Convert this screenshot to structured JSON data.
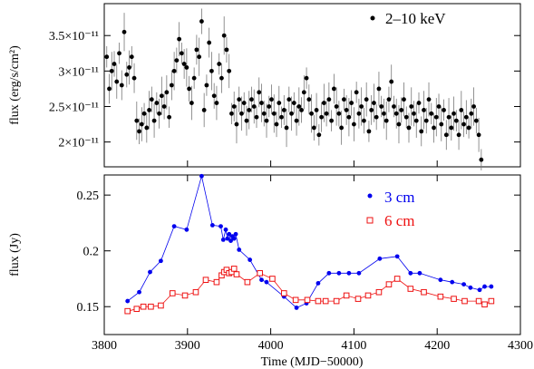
{
  "chart_data": [
    {
      "type": "scatter",
      "ylabel": "flux (erg/s/cm²)",
      "xlim": [
        3800,
        4300
      ],
      "ylim": [
        1.65e-11,
        3.95e-11
      ],
      "yticks": [
        {
          "value": 2e-11,
          "label": "2×10⁻¹¹"
        },
        {
          "value": 2.5e-11,
          "label": "2.5×10⁻¹¹"
        },
        {
          "value": 3e-11,
          "label": "3×10⁻¹¹"
        },
        {
          "value": 3.5e-11,
          "label": "3.5×10⁻¹¹"
        }
      ],
      "error_bars": true,
      "legend": {
        "position": "top-right"
      },
      "series": [
        {
          "name": "2–10 keV",
          "color": "#000000",
          "marker": "dot",
          "x": [
            3803,
            3806,
            3809,
            3812,
            3815,
            3818,
            3821,
            3824,
            3827,
            3830,
            3833,
            3836,
            3839,
            3842,
            3845,
            3848,
            3851,
            3854,
            3857,
            3860,
            3863,
            3866,
            3869,
            3872,
            3875,
            3878,
            3881,
            3884,
            3887,
            3890,
            3893,
            3896,
            3899,
            3902,
            3905,
            3908,
            3911,
            3914,
            3917,
            3920,
            3923,
            3926,
            3929,
            3932,
            3935,
            3938,
            3941,
            3944,
            3947,
            3950,
            3953,
            3956,
            3959,
            3962,
            3965,
            3968,
            3971,
            3974,
            3977,
            3980,
            3983,
            3986,
            3989,
            3992,
            3995,
            3998,
            4001,
            4004,
            4007,
            4010,
            4013,
            4016,
            4019,
            4022,
            4025,
            4028,
            4031,
            4034,
            4037,
            4040,
            4043,
            4046,
            4049,
            4052,
            4055,
            4058,
            4061,
            4064,
            4067,
            4070,
            4073,
            4076,
            4079,
            4082,
            4085,
            4088,
            4091,
            4094,
            4097,
            4100,
            4103,
            4106,
            4109,
            4112,
            4115,
            4118,
            4121,
            4124,
            4127,
            4130,
            4133,
            4136,
            4139,
            4142,
            4145,
            4148,
            4151,
            4154,
            4157,
            4160,
            4163,
            4166,
            4169,
            4172,
            4175,
            4178,
            4181,
            4184,
            4187,
            4190,
            4193,
            4196,
            4199,
            4202,
            4205,
            4208,
            4211,
            4214,
            4217,
            4220,
            4223,
            4226,
            4229,
            4232,
            4235,
            4238,
            4241,
            4244,
            4247,
            4250,
            4253
          ],
          "y": [
            3.2e-11,
            2.75e-11,
            3e-11,
            3.1e-11,
            2.85e-11,
            3.25e-11,
            2.8e-11,
            3.55e-11,
            2.95e-11,
            3.05e-11,
            3.2e-11,
            2.9e-11,
            2.3e-11,
            2.15e-11,
            2.25e-11,
            2.4e-11,
            2.2e-11,
            2.45e-11,
            2.6e-11,
            2.3e-11,
            2.55e-11,
            2.4e-11,
            2.65e-11,
            2.5e-11,
            2.7e-11,
            2.35e-11,
            2.8e-11,
            3e-11,
            3.15e-11,
            3.45e-11,
            3.25e-11,
            3.1e-11,
            3.05e-11,
            2.75e-11,
            2.55e-11,
            2.9e-11,
            3.3e-11,
            3.2e-11,
            3.7e-11,
            2.45e-11,
            2.8e-11,
            3.4e-11,
            3e-11,
            2.65e-11,
            2.55e-11,
            3.1e-11,
            2.9e-11,
            3.5e-11,
            3.3e-11,
            3e-11,
            2.4e-11,
            2.5e-11,
            2.25e-11,
            2.6e-11,
            2.4e-11,
            2.55e-11,
            2.3e-11,
            2.45e-11,
            2.6e-11,
            2.5e-11,
            2.35e-11,
            2.7e-11,
            2.55e-11,
            2.4e-11,
            2.3e-11,
            2.5e-11,
            2.6e-11,
            2.4e-11,
            2.25e-11,
            2.55e-11,
            2.35e-11,
            2.45e-11,
            2.2e-11,
            2.6e-11,
            2.4e-11,
            2.55e-11,
            2.3e-11,
            2.5e-11,
            2.45e-11,
            2.7e-11,
            2.9e-11,
            2.6e-11,
            2.4e-11,
            2.2e-11,
            2.45e-11,
            2.1e-11,
            2.35e-11,
            2.55e-11,
            2.4e-11,
            2.6e-11,
            2.3e-11,
            2.75e-11,
            2.5e-11,
            2.4e-11,
            2.2e-11,
            2.6e-11,
            2.45e-11,
            2.35e-11,
            2.55e-11,
            2.25e-11,
            2.7e-11,
            2.4e-11,
            2.5e-11,
            2.3e-11,
            2.6e-11,
            2.15e-11,
            2.45e-11,
            2.55e-11,
            2.35e-11,
            2.75e-11,
            2.5e-11,
            2.4e-11,
            2.3e-11,
            2.6e-11,
            2.85e-11,
            2.5e-11,
            2.4e-11,
            2.25e-11,
            2.45e-11,
            2.6e-11,
            2.35e-11,
            2.2e-11,
            2.5e-11,
            2.4e-11,
            2.3e-11,
            2.55e-11,
            2.15e-11,
            2.45e-11,
            2.3e-11,
            2.6e-11,
            2.4e-11,
            2.2e-11,
            2.35e-11,
            2.5e-11,
            2.25e-11,
            2.45e-11,
            2.1e-11,
            2.35e-11,
            2.2e-11,
            2.4e-11,
            2.3e-11,
            2.1e-11,
            2.45e-11,
            2.25e-11,
            2.35e-11,
            2.2e-11,
            2.4e-11,
            2.5e-11,
            2.3e-11,
            2.1e-11,
            1.75e-11
          ]
        }
      ]
    },
    {
      "type": "line",
      "xlabel": "Time (MJD−50000)",
      "ylabel": "flux (Jy)",
      "xlim": [
        3800,
        4300
      ],
      "ylim": [
        0.125,
        0.268
      ],
      "xticks": [
        3800,
        3900,
        4000,
        4100,
        4200,
        4300
      ],
      "yticks": [
        {
          "value": 0.15,
          "label": "0.15"
        },
        {
          "value": 0.2,
          "label": "0.2"
        },
        {
          "value": 0.25,
          "label": "0.25"
        }
      ],
      "legend": {
        "position": "top-right"
      },
      "series": [
        {
          "name": "3 cm",
          "color": "#0000ee",
          "marker": "dot",
          "x": [
            3828,
            3842,
            3855,
            3868,
            3884,
            3899,
            3917,
            3930,
            3940,
            3943,
            3946,
            3948,
            3950,
            3952,
            3954,
            3956,
            3958,
            3962,
            3975,
            3989,
            3995,
            4016,
            4031,
            4043,
            4057,
            4070,
            4082,
            4094,
            4106,
            4131,
            4152,
            4168,
            4179,
            4204,
            4218,
            4232,
            4240,
            4251,
            4257,
            4265
          ],
          "x_note": "",
          "y": [
            0.155,
            0.163,
            0.181,
            0.191,
            0.222,
            0.219,
            0.267,
            0.223,
            0.222,
            0.21,
            0.219,
            0.211,
            0.215,
            0.209,
            0.213,
            0.211,
            0.215,
            0.201,
            0.192,
            0.174,
            0.172,
            0.159,
            0.149,
            0.153,
            0.171,
            0.18,
            0.18,
            0.18,
            0.18,
            0.193,
            0.195,
            0.18,
            0.18,
            0.174,
            0.172,
            0.17,
            0.167,
            0.165,
            0.168,
            0.168
          ]
        },
        {
          "name": "6 cm",
          "color": "#ee1111",
          "marker": "open-square",
          "x": [
            3828,
            3839,
            3847,
            3856,
            3868,
            3882,
            3897,
            3910,
            3922,
            3935,
            3941,
            3944,
            3947,
            3950,
            3953,
            3956,
            3959,
            3972,
            3987,
            4002,
            4016,
            4030,
            4044,
            4057,
            4066,
            4079,
            4091,
            4105,
            4117,
            4130,
            4142,
            4152,
            4168,
            4184,
            4204,
            4220,
            4233,
            4250,
            4257,
            4265
          ],
          "x_note": "",
          "y": [
            0.146,
            0.148,
            0.15,
            0.15,
            0.151,
            0.162,
            0.16,
            0.163,
            0.174,
            0.172,
            0.178,
            0.181,
            0.183,
            0.18,
            0.181,
            0.184,
            0.179,
            0.172,
            0.18,
            0.175,
            0.162,
            0.156,
            0.156,
            0.155,
            0.155,
            0.155,
            0.16,
            0.157,
            0.16,
            0.163,
            0.17,
            0.175,
            0.166,
            0.163,
            0.159,
            0.157,
            0.155,
            0.155,
            0.152,
            0.155
          ]
        }
      ]
    }
  ]
}
